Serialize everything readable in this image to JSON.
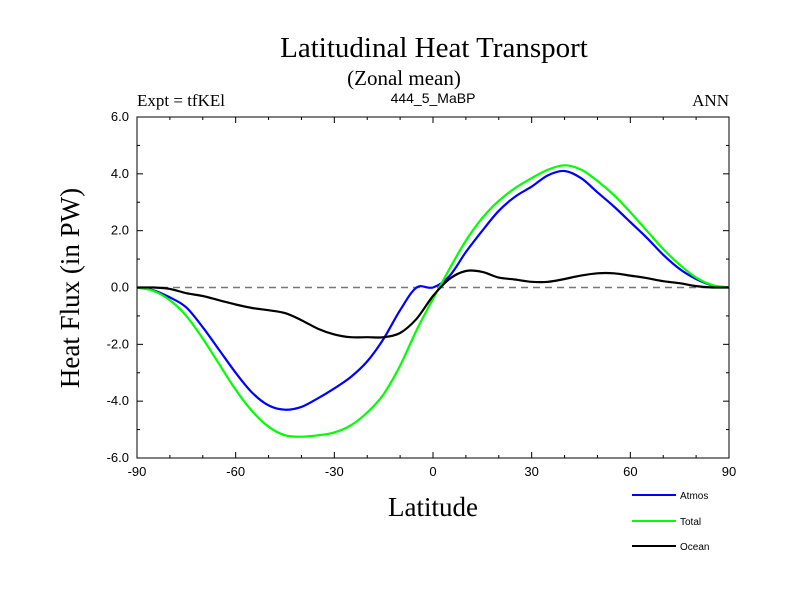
{
  "chart_data": {
    "type": "line",
    "title": "Latitudinal Heat Transport",
    "subtitle": "(Zonal mean)",
    "header_left": "Expt = tfKEl",
    "header_center": "444_5_MaBP",
    "header_right": "ANN",
    "xlabel": "Latitude",
    "ylabel": "Heat Flux (in PW)",
    "xlim": [
      -90,
      90
    ],
    "ylim": [
      -6,
      6
    ],
    "xticks": [
      -90,
      -60,
      -30,
      0,
      30,
      60,
      90
    ],
    "xtick_labels": [
      "-90",
      "-60",
      "-30",
      "0",
      "30",
      "60",
      "90"
    ],
    "yticks": [
      -6,
      -4,
      -2,
      0,
      2,
      4,
      6
    ],
    "ytick_labels": [
      "-6.0",
      "-4.0",
      "-2.0",
      "0.0",
      "2.0",
      "4.0",
      "6.0"
    ],
    "zero_line": true,
    "grid": false,
    "legend_position": "bottom-right",
    "x": [
      -90,
      -85,
      -80,
      -75,
      -70,
      -65,
      -60,
      -55,
      -50,
      -45,
      -40,
      -35,
      -30,
      -25,
      -20,
      -15,
      -10,
      -5,
      0,
      5,
      10,
      15,
      20,
      25,
      30,
      35,
      40,
      45,
      50,
      55,
      60,
      65,
      70,
      75,
      80,
      85,
      90
    ],
    "series": [
      {
        "name": "Atmos",
        "color": "#0000ff",
        "values": [
          0,
          -0.1,
          -0.35,
          -0.7,
          -1.4,
          -2.2,
          -3.0,
          -3.7,
          -4.15,
          -4.3,
          -4.2,
          -3.9,
          -3.55,
          -3.15,
          -2.6,
          -1.8,
          -0.8,
          0.0,
          0.0,
          0.4,
          1.25,
          2.0,
          2.7,
          3.2,
          3.55,
          3.95,
          4.1,
          3.85,
          3.35,
          2.85,
          2.3,
          1.75,
          1.15,
          0.65,
          0.3,
          0.07,
          0
        ]
      },
      {
        "name": "Total",
        "color": "#00ff00",
        "values": [
          0,
          -0.12,
          -0.45,
          -1.0,
          -1.8,
          -2.7,
          -3.6,
          -4.35,
          -4.9,
          -5.2,
          -5.25,
          -5.2,
          -5.1,
          -4.85,
          -4.4,
          -3.75,
          -2.75,
          -1.5,
          -0.4,
          0.65,
          1.65,
          2.45,
          3.05,
          3.5,
          3.85,
          4.15,
          4.3,
          4.15,
          3.75,
          3.25,
          2.65,
          2.0,
          1.35,
          0.8,
          0.35,
          0.08,
          0
        ]
      },
      {
        "name": "Ocean",
        "color": "#000000",
        "values": [
          0,
          0,
          -0.05,
          -0.2,
          -0.3,
          -0.45,
          -0.6,
          -0.72,
          -0.8,
          -0.9,
          -1.15,
          -1.45,
          -1.65,
          -1.75,
          -1.75,
          -1.75,
          -1.6,
          -1.1,
          -0.3,
          0.3,
          0.58,
          0.55,
          0.35,
          0.28,
          0.2,
          0.2,
          0.3,
          0.42,
          0.5,
          0.5,
          0.42,
          0.33,
          0.22,
          0.15,
          0.05,
          0,
          0
        ]
      }
    ]
  }
}
